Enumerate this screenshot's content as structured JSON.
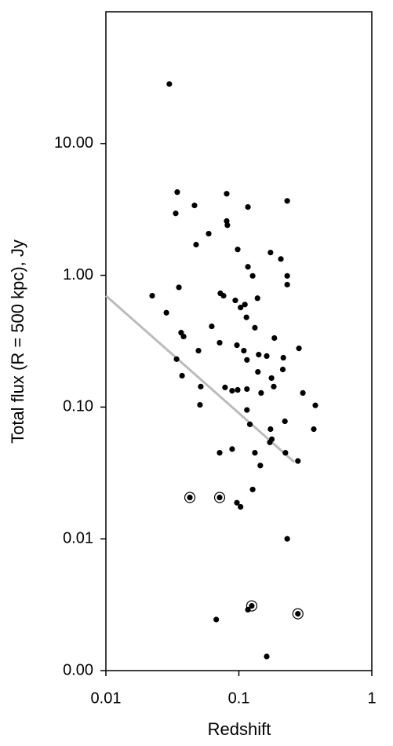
{
  "chart_data": {
    "type": "scatter",
    "x_label": "Redshift",
    "y_label": "Total flux (R = 500 kpc), Jy",
    "x_log": true,
    "y_log": true,
    "xlim": [
      0.01,
      1
    ],
    "xticks": [
      0.01,
      0.1,
      1
    ],
    "ylim": [
      0.001,
      100
    ],
    "yticks": [
      {
        "value": 0.001,
        "label": "0.00"
      },
      0.01,
      {
        "value": 0.1,
        "label": "0.10"
      },
      {
        "value": 1,
        "label": "1.00"
      },
      {
        "value": 10,
        "label": "10.00"
      }
    ],
    "series": [
      {
        "color": "#000000",
        "style": "dot",
        "x": [
          0.03,
          0.0344,
          0.0335,
          0.0464,
          0.081,
          0.117,
          0.231,
          0.0593,
          0.081,
          0.082,
          0.0477,
          0.098,
          0.173,
          0.207,
          0.117,
          0.127,
          0.231,
          0.231,
          0.0354,
          0.0223,
          0.0726,
          0.0767,
          0.138,
          0.094,
          0.111,
          0.103,
          0.0285,
          0.114,
          0.0625,
          0.132,
          0.0368,
          0.0384,
          0.185,
          0.0717,
          0.0967,
          0.283,
          0.0497,
          0.109,
          0.141,
          0.162,
          0.034,
          0.216,
          0.115,
          0.139,
          0.214,
          0.0374,
          0.176,
          0.0787,
          0.0517,
          0.183,
          0.089,
          0.098,
          0.115,
          0.147,
          0.303,
          0.376,
          0.051,
          0.115,
          0.121,
          0.222,
          0.173,
          0.366,
          0.177,
          0.171,
          0.089,
          0.0717,
          0.132,
          0.224,
          0.278,
          0.145,
          0.127,
          0.0967,
          0.103,
          0.231,
          0.117,
          0.0676,
          0.162
        ],
        "values": [
          28.3,
          4.28,
          2.95,
          3.39,
          4.16,
          3.3,
          3.67,
          2.07,
          2.58,
          2.4,
          1.71,
          1.57,
          1.49,
          1.33,
          1.16,
          0.99,
          0.99,
          0.85,
          0.81,
          0.7,
          0.73,
          0.7,
          0.67,
          0.645,
          0.6,
          0.57,
          0.52,
          0.48,
          0.41,
          0.4,
          0.367,
          0.343,
          0.334,
          0.308,
          0.295,
          0.279,
          0.268,
          0.268,
          0.25,
          0.244,
          0.231,
          0.237,
          0.228,
          0.185,
          0.193,
          0.173,
          0.166,
          0.141,
          0.143,
          0.143,
          0.133,
          0.135,
          0.137,
          0.128,
          0.128,
          0.103,
          0.104,
          0.095,
          0.074,
          0.078,
          0.068,
          0.068,
          0.057,
          0.054,
          0.048,
          0.045,
          0.045,
          0.045,
          0.039,
          0.036,
          0.0237,
          0.0188,
          0.0175,
          0.01,
          0.0029,
          0.00244,
          0.00128
        ]
      },
      {
        "color": "#000000",
        "style": "ringed",
        "x": [
          0.0428,
          0.0717,
          0.125,
          0.278
        ],
        "values": [
          0.0206,
          0.0206,
          0.0031,
          0.0027
        ]
      }
    ],
    "trend_line": {
      "color": "#bbbbbb",
      "x": [
        0.01,
        0.261
      ],
      "values": [
        0.7,
        0.0383
      ]
    }
  }
}
